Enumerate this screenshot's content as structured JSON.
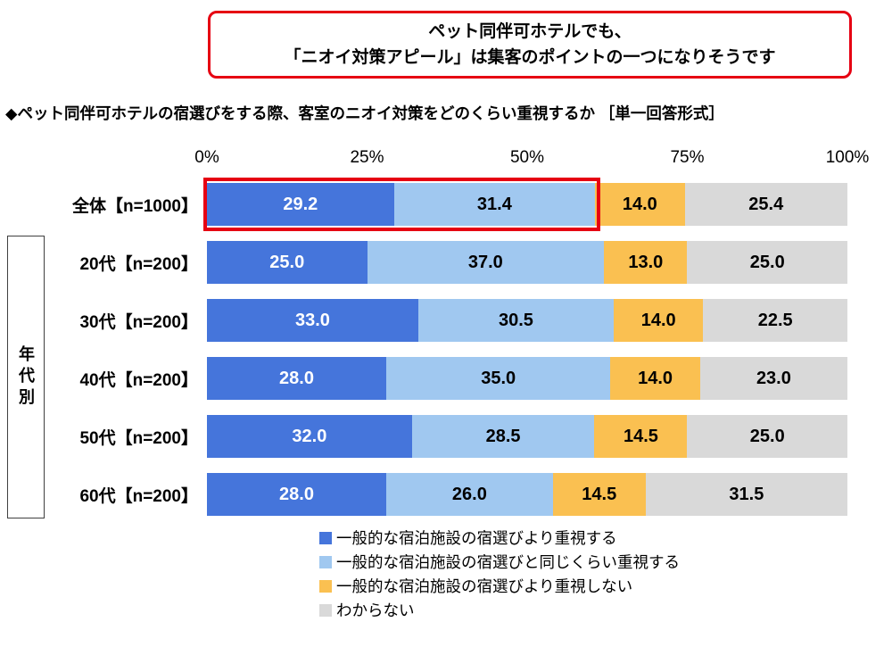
{
  "callout": {
    "line1": "ペット同伴可ホテルでも、",
    "line2": "「ニオイ対策アピール」は集客のポイントの一つになりそうです"
  },
  "title": "◆ペット同伴可ホテルの宿選びをする際、客室のニオイ対策をどのくらい重視するか ［単一回答形式］",
  "group_label": "年代別",
  "colors": {
    "callout_border": "#e60012",
    "highlight_border": "#e60012",
    "series_blue": "#4575db",
    "series_light_blue": "#a0c8f0",
    "series_orange": "#fac051",
    "series_gray": "#d9d9d9"
  },
  "chart_data": {
    "type": "bar",
    "stacked": true,
    "orientation": "horizontal",
    "xlim": [
      0,
      100
    ],
    "x_ticks": [
      "0%",
      "25%",
      "50%",
      "75%",
      "100%"
    ],
    "grid": false,
    "legend_position": "bottom",
    "categories": [
      "全体【n=1000】",
      "20代【n=200】",
      "30代【n=200】",
      "40代【n=200】",
      "50代【n=200】",
      "60代【n=200】"
    ],
    "series": [
      {
        "name": "一般的な宿泊施設の宿選びより重視する",
        "color": "#4575db",
        "value_color": "#ffffff",
        "values": [
          29.2,
          25.0,
          33.0,
          28.0,
          32.0,
          28.0
        ]
      },
      {
        "name": "一般的な宿泊施設の宿選びと同じくらい重視する",
        "color": "#a0c8f0",
        "value_color": "#000000",
        "values": [
          31.4,
          37.0,
          30.5,
          35.0,
          28.5,
          26.0
        ]
      },
      {
        "name": "一般的な宿泊施設の宿選びより重視しない",
        "color": "#fac051",
        "value_color": "#000000",
        "values": [
          14.0,
          13.0,
          14.0,
          14.0,
          14.5,
          14.5
        ]
      },
      {
        "name": "わからない",
        "color": "#d9d9d9",
        "value_color": "#000000",
        "values": [
          25.4,
          25.0,
          22.5,
          23.0,
          25.0,
          31.5
        ]
      }
    ],
    "highlight": {
      "row_index": 0,
      "segments": [
        0,
        1
      ],
      "color": "#e60012"
    }
  }
}
